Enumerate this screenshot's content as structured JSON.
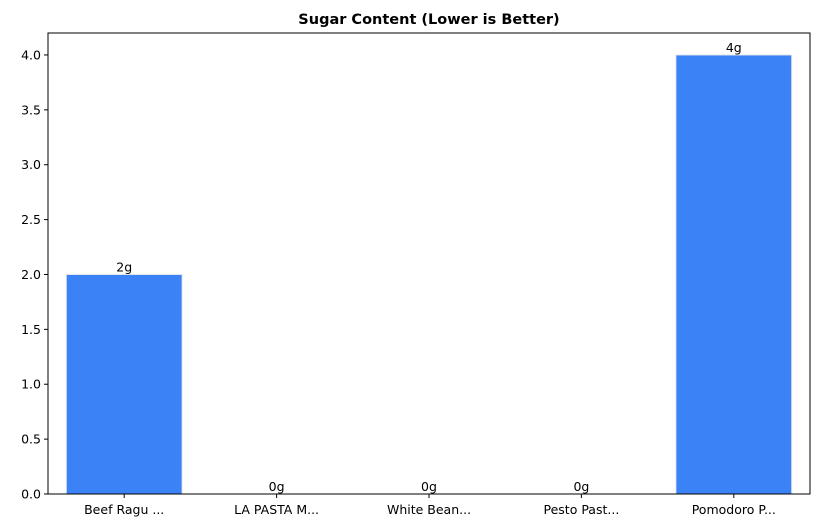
{
  "chart_data": {
    "type": "bar",
    "title": "Sugar Content (Lower is Better)",
    "xlabel": "",
    "ylabel": "",
    "categories": [
      "Beef Ragu ...",
      "LA PASTA M...",
      "White Bean...",
      "Pesto Past...",
      "Pomodoro P..."
    ],
    "values": [
      2,
      0,
      0,
      0,
      4
    ],
    "data_labels": [
      "2g",
      "0g",
      "0g",
      "0g",
      "4g"
    ],
    "y_ticks": [
      0.0,
      0.5,
      1.0,
      1.5,
      2.0,
      2.5,
      3.0,
      3.5,
      4.0
    ],
    "y_tick_labels": [
      "0.0",
      "0.5",
      "1.0",
      "1.5",
      "2.0",
      "2.5",
      "3.0",
      "3.5",
      "4.0"
    ],
    "ylim": [
      0,
      4.2
    ],
    "grid": false,
    "bar_color": "#3b82f6",
    "bar_edge_color": "#e5e7eb"
  }
}
